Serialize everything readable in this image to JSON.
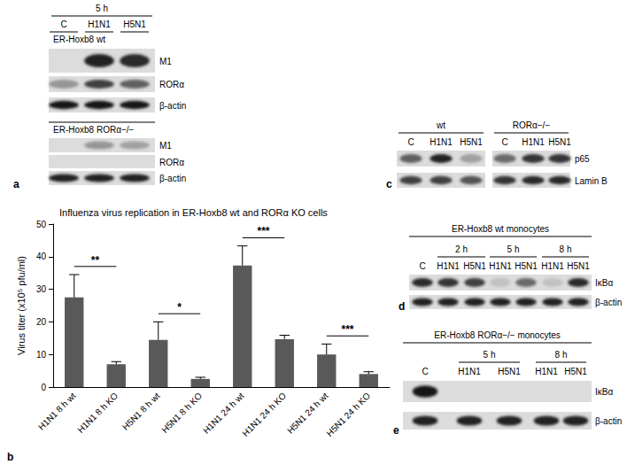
{
  "panels": {
    "a": {
      "letter": "a",
      "time": "5 h",
      "lanes": [
        "C",
        "H1N1",
        "H5N1"
      ],
      "sections": [
        {
          "title": "ER-Hoxb8 wt",
          "rows": [
            {
              "label": "M1",
              "intensity": [
                0,
                0.9,
                0.85
              ]
            },
            {
              "label": "RORα",
              "intensity": [
                0.35,
                0.75,
                0.6
              ]
            },
            {
              "label": "β-actin",
              "intensity": [
                0.95,
                0.95,
                0.95
              ]
            }
          ]
        },
        {
          "title": "ER-Hoxb8 RORα−/−",
          "rows": [
            {
              "label": "M1",
              "intensity": [
                0,
                0.35,
                0.3
              ]
            },
            {
              "label": "RORα",
              "intensity": [
                0,
                0,
                0
              ]
            },
            {
              "label": "β-actin",
              "intensity": [
                0.9,
                0.9,
                0.9
              ]
            }
          ]
        }
      ]
    },
    "b": {
      "letter": "b"
    },
    "c": {
      "letter": "c",
      "groups": [
        {
          "title": "wt",
          "lanes": [
            "C",
            "H1N1",
            "H5N1"
          ]
        },
        {
          "title": "RORα−/−",
          "lanes": [
            "C",
            "H1N1",
            "H5N1"
          ]
        }
      ],
      "rows": [
        {
          "label": "p65",
          "intensity": [
            [
              0.6,
              0.9,
              0.3
            ],
            [
              0.55,
              0.8,
              0.8
            ]
          ]
        },
        {
          "label": "Lamin B",
          "intensity": [
            [
              0.75,
              0.75,
              0.65
            ],
            [
              0.8,
              0.85,
              0.85
            ]
          ]
        }
      ]
    },
    "d": {
      "letter": "d",
      "title": "ER-Hoxb8 wt monocytes",
      "headers": [
        {
          "label": "2 h",
          "lanes": [
            1,
            2
          ]
        },
        {
          "label": "5 h",
          "lanes": [
            3,
            4
          ]
        },
        {
          "label": "8 h",
          "lanes": [
            5,
            6
          ]
        }
      ],
      "lanes": [
        "C",
        "H1N1",
        "H5N1",
        "H1N1",
        "H5N1",
        "H1N1",
        "H5N1"
      ],
      "rows": [
        {
          "label": "IκBα",
          "intensity": [
            0.85,
            0.8,
            0.75,
            0.15,
            0.55,
            0.15,
            0.85
          ]
        },
        {
          "label": "β-actin",
          "intensity": [
            0.9,
            0.9,
            0.9,
            0.9,
            0.9,
            0.9,
            0.9
          ]
        }
      ]
    },
    "e": {
      "letter": "e",
      "title": "ER-Hoxb8 RORα−/− monocytes",
      "headers": [
        {
          "label": "5 h",
          "lanes": [
            1,
            2
          ]
        },
        {
          "label": "8 h",
          "lanes": [
            3,
            4
          ]
        }
      ],
      "lanes": [
        "C",
        "H1N1",
        "H5N1",
        "H1N1",
        "H5N1"
      ],
      "rows": [
        {
          "label": "IκBα",
          "intensity": [
            0.95,
            0,
            0,
            0,
            0
          ]
        },
        {
          "label": "β-actin",
          "intensity": [
            0.9,
            0.9,
            0.9,
            0.9,
            0.9
          ]
        }
      ]
    }
  },
  "chart_data": {
    "type": "bar",
    "title": "Influenza virus replication in ER-Hoxb8 wt and RORα KO cells",
    "y_label": "Virus titer (x10⁵ pfu/ml)",
    "categories": [
      "H1N1 8 h wt",
      "H1N1 8 h KO",
      "H5N1 8 h wt",
      "H5N1 8 h KO",
      "H1N1 24 h wt",
      "H1N1 24 h KO",
      "H5N1 24 h wt",
      "H5N1 24 h KO"
    ],
    "values": [
      27.5,
      7,
      14.5,
      2.5,
      37.3,
      14.7,
      10,
      4
    ],
    "error": [
      7,
      0.8,
      5.5,
      0.5,
      6,
      1.2,
      3.2,
      0.7
    ],
    "significance": [
      {
        "pair": [
          0,
          1
        ],
        "label": "**"
      },
      {
        "pair": [
          2,
          3
        ],
        "label": "*"
      },
      {
        "pair": [
          4,
          5
        ],
        "label": "***"
      },
      {
        "pair": [
          6,
          7
        ],
        "label": "***"
      }
    ],
    "color": "#595959",
    "ylim": [
      0,
      50
    ],
    "yticks": [
      0,
      10,
      20,
      30,
      40,
      50
    ],
    "grid": false
  }
}
